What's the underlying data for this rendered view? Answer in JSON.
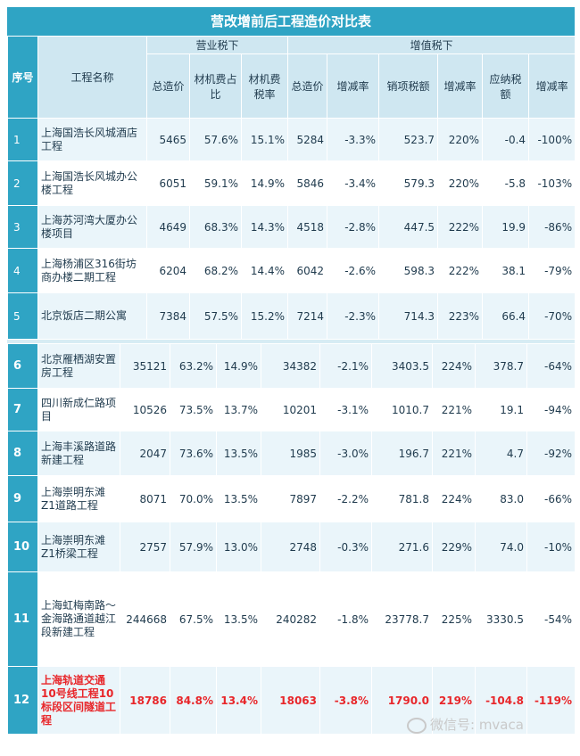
{
  "title": "营改增前后工程造价对比表",
  "header": {
    "seq": "序号",
    "name": "工程名称",
    "group_before": "营业税下",
    "group_after": "增值税下",
    "before_cols": [
      "总造价",
      "材机费占比",
      "材机费税率"
    ],
    "after_cols": [
      "总造价",
      "增减率",
      "销项税额",
      "增减率",
      "应纳税额",
      "增减率"
    ]
  },
  "rows_top": [
    {
      "seq": "1",
      "name": "上海国浩长风城酒店工程",
      "total": "5465",
      "ratio": "57.6%",
      "rate": "15.1%",
      "vat_total": "5284",
      "chg1": "-3.3%",
      "output_tax": "523.7",
      "chg2": "220%",
      "payable": "-0.4",
      "chg3": "-100%"
    },
    {
      "seq": "2",
      "name": "上海国浩长风城办公楼工程",
      "total": "6051",
      "ratio": "59.1%",
      "rate": "14.9%",
      "vat_total": "5846",
      "chg1": "-3.4%",
      "output_tax": "579.3",
      "chg2": "220%",
      "payable": "-5.8",
      "chg3": "-103%"
    },
    {
      "seq": "3",
      "name": "上海苏河湾大厦办公楼项目",
      "total": "4649",
      "ratio": "68.3%",
      "rate": "14.3%",
      "vat_total": "4518",
      "chg1": "-2.8%",
      "output_tax": "447.5",
      "chg2": "222%",
      "payable": "19.9",
      "chg3": "-86%"
    },
    {
      "seq": "4",
      "name": "上海杨浦区316街坊商办楼二期工程",
      "total": "6204",
      "ratio": "68.2%",
      "rate": "14.4%",
      "vat_total": "6042",
      "chg1": "-2.6%",
      "output_tax": "598.3",
      "chg2": "222%",
      "payable": "38.1",
      "chg3": "-79%"
    },
    {
      "seq": "5",
      "name": "北京饭店二期公寓",
      "total": "7384",
      "ratio": "57.5%",
      "rate": "15.2%",
      "vat_total": "7214",
      "chg1": "-2.3%",
      "output_tax": "714.3",
      "chg2": "223%",
      "payable": "66.4",
      "chg3": "-70%"
    }
  ],
  "rows_bottom": [
    {
      "seq": "6",
      "name": "北京雁栖湖安置房工程",
      "total": "35121",
      "ratio": "63.2%",
      "rate": "14.9%",
      "vat_total": "34382",
      "chg1": "-2.1%",
      "output_tax": "3403.5",
      "chg2": "224%",
      "payable": "378.7",
      "chg3": "-64%"
    },
    {
      "seq": "7",
      "name": "四川新成仁路项目",
      "total": "10526",
      "ratio": "73.5%",
      "rate": "13.7%",
      "vat_total": "10201",
      "chg1": "-3.1%",
      "output_tax": "1010.7",
      "chg2": "221%",
      "payable": "19.1",
      "chg3": "-94%"
    },
    {
      "seq": "8",
      "name": "上海丰溪路道路新建工程",
      "total": "2047",
      "ratio": "73.6%",
      "rate": "13.5%",
      "vat_total": "1985",
      "chg1": "-3.0%",
      "output_tax": "196.7",
      "chg2": "221%",
      "payable": "4.7",
      "chg3": "-92%"
    },
    {
      "seq": "9",
      "name": "上海崇明东滩Z1道路工程",
      "total": "8071",
      "ratio": "70.0%",
      "rate": "13.5%",
      "vat_total": "7897",
      "chg1": "-2.2%",
      "output_tax": "781.8",
      "chg2": "224%",
      "payable": "83.0",
      "chg3": "-66%"
    },
    {
      "seq": "10",
      "name": "上海崇明东滩Z1桥梁工程",
      "total": "2757",
      "ratio": "57.9%",
      "rate": "13.0%",
      "vat_total": "2748",
      "chg1": "-0.3%",
      "output_tax": "271.6",
      "chg2": "229%",
      "payable": "74.0",
      "chg3": "-10%"
    },
    {
      "seq": "11",
      "name": "上海虹梅南路～金海路通道越江段新建工程",
      "total": "244668",
      "ratio": "67.5%",
      "rate": "13.5%",
      "vat_total": "240282",
      "chg1": "-1.8%",
      "output_tax": "23778.7",
      "chg2": "225%",
      "payable": "3330.5",
      "chg3": "-54%"
    },
    {
      "seq": "12",
      "name": "上海轨道交通10号线工程10标段区间隧道工程",
      "total": "18786",
      "ratio": "84.8%",
      "rate": "13.4%",
      "vat_total": "18063",
      "chg1": "-3.8%",
      "output_tax": "1790.0",
      "chg2": "219%",
      "payable": "-104.8",
      "chg3": "-119%"
    }
  ],
  "watermark": "微信号: mvaca",
  "colors": {
    "header": "#2fa4c4",
    "subheader": "#cfe7f1",
    "row_shade": "#eaf5fa",
    "highlight": "#e8262a"
  }
}
